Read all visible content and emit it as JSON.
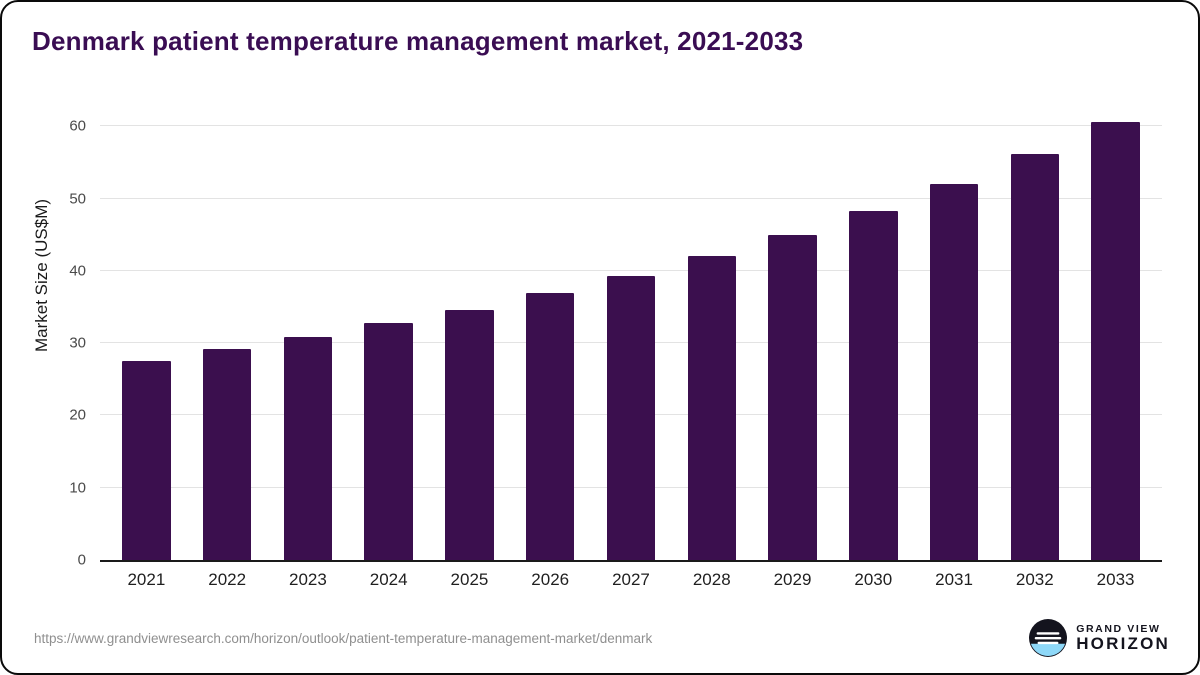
{
  "title": "Denmark patient temperature management market, 2021-2033",
  "footer": {
    "source_url": "https://www.grandviewresearch.com/horizon/outlook/patient-temperature-management-market/denmark",
    "brand_line1": "GRAND VIEW",
    "brand_line2": "HORIZON",
    "logo_icon": "horizon-sun-icon"
  },
  "chart_data": {
    "type": "bar",
    "title": "Denmark patient temperature management market, 2021-2033",
    "categories": [
      "2021",
      "2022",
      "2023",
      "2024",
      "2025",
      "2026",
      "2027",
      "2028",
      "2029",
      "2030",
      "2031",
      "2032",
      "2033"
    ],
    "values": [
      27.6,
      29.2,
      30.9,
      32.8,
      34.6,
      36.9,
      39.3,
      42.1,
      45.0,
      48.3,
      52.0,
      56.2,
      60.6
    ],
    "xlabel": "",
    "ylabel": "Market Size (US$M)",
    "ylim": [
      0,
      62
    ],
    "yticks": [
      0,
      10,
      20,
      30,
      40,
      50,
      60
    ],
    "grid": true,
    "legend": false,
    "bar_color": "#3b0f4e",
    "title_color": "#3a0d53"
  }
}
